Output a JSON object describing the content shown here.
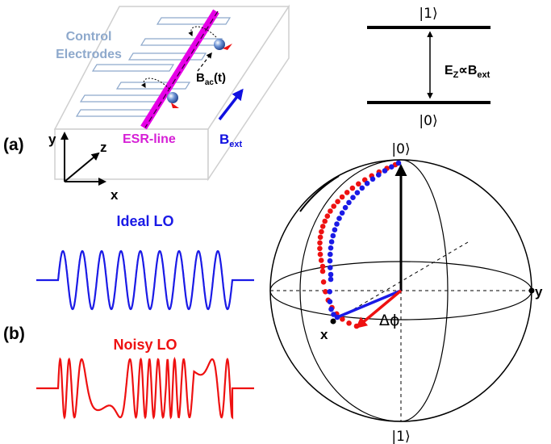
{
  "panel_a": {
    "label": "(a)",
    "control_electrodes_line1": "Control",
    "control_electrodes_line2": "Electrodes",
    "bac_main": "B",
    "bac_sub": "ac",
    "bac_suffix": "(t)",
    "esr_line": "ESR-line",
    "bext_main": "B",
    "bext_sub": "ext",
    "axis_y": "y",
    "axis_z": "z",
    "axis_x": "x",
    "level_top": "|1⟩",
    "level_bottom": "|0⟩",
    "ez_main": "E",
    "ez_sub": "Z",
    "ez_prop": "∝B",
    "ez_sub2": "ext"
  },
  "panel_b": {
    "label": "(b)",
    "ideal_lo": "Ideal LO",
    "noisy_lo": "Noisy LO",
    "sphere_top": "|0⟩",
    "sphere_bottom": "|1⟩",
    "sphere_x": "x",
    "sphere_y": "y",
    "delta_phi": "Δϕ"
  },
  "colors": {
    "electrode": "#8ea9cc",
    "control_text": "#8ea9cc",
    "esr": "#e600e6",
    "esr_text": "#d61fd6",
    "bext": "#1010e0",
    "ideal": "#1a1ae6",
    "noisy": "#ee1111",
    "box_edge": "#c8c8c8"
  }
}
